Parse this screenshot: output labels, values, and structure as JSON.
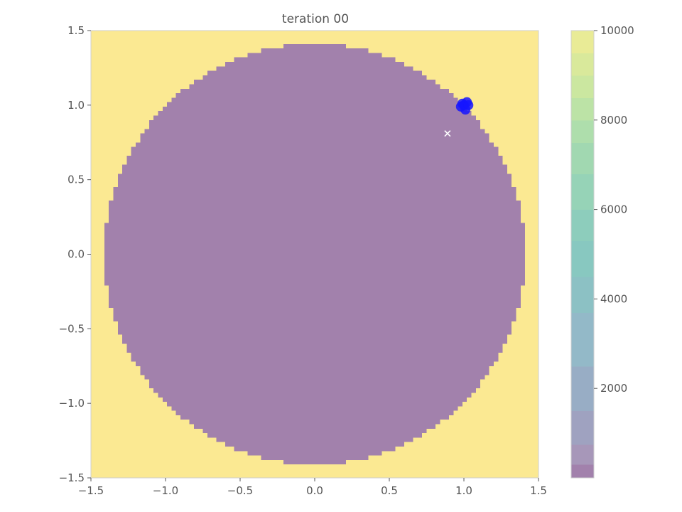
{
  "chart_data": {
    "type": "heatmap",
    "title": "teration 00",
    "xlabel": "",
    "ylabel": "",
    "xlim": [
      -1.5,
      1.5
    ],
    "ylim": [
      -1.5,
      1.5
    ],
    "x_ticks": [
      -1.5,
      -1.0,
      -0.5,
      0.0,
      0.5,
      1.0,
      1.5
    ],
    "x_tick_labels": [
      "−1.5",
      "−1.0",
      "−0.5",
      "0.0",
      "0.5",
      "1.0",
      "1.5"
    ],
    "y_ticks": [
      1.5,
      1.0,
      0.5,
      0.0,
      -0.5,
      -1.0,
      -1.5
    ],
    "y_tick_labels": [
      "1.5",
      "1.0",
      "0.5",
      "0.0",
      "−0.5",
      "−1.0",
      "−1.5"
    ],
    "grid": false,
    "regions": [
      {
        "shape": "disk",
        "center": [
          0.0,
          0.0
        ],
        "radius": 1.41,
        "value_level": "low",
        "color": "#a281ac"
      },
      {
        "shape": "outside",
        "value_level": "high",
        "color": "#fbe992"
      }
    ],
    "scatter_points": [
      {
        "x": 1.0,
        "y": 1.0,
        "color": "#1515ff"
      },
      {
        "x": 1.02,
        "y": 1.02,
        "color": "#1515ff"
      },
      {
        "x": 0.99,
        "y": 1.01,
        "color": "#1515ff"
      },
      {
        "x": 1.01,
        "y": 0.97,
        "color": "#1515ff"
      },
      {
        "x": 0.98,
        "y": 0.99,
        "color": "#1515ff"
      },
      {
        "x": 1.03,
        "y": 1.0,
        "color": "#1515ff"
      }
    ],
    "marker": {
      "x": 0.89,
      "y": 0.81,
      "symbol": "x",
      "color": "#ffffff"
    },
    "colorbar": {
      "range": [
        0,
        10000
      ],
      "ticks": [
        2000,
        4000,
        6000,
        8000,
        10000
      ],
      "tick_labels": [
        "2000",
        "4000",
        "6000",
        "8000",
        "10000"
      ],
      "band_edges": [
        0,
        300,
        750,
        1500,
        2500,
        3700,
        4500,
        5300,
        6000,
        6800,
        7500,
        8000,
        8500,
        9000,
        9500,
        10000
      ],
      "band_colors": [
        "#a281ac",
        "#a797b9",
        "#9fa2c0",
        "#98adc5",
        "#93b9c8",
        "#8cc1c4",
        "#88c8c0",
        "#8dcdbc",
        "#96d3b7",
        "#a1d8b1",
        "#aedeac",
        "#bce3a6",
        "#cbe7a0",
        "#d9e99b",
        "#e9eb96",
        "#fbe992"
      ]
    }
  }
}
